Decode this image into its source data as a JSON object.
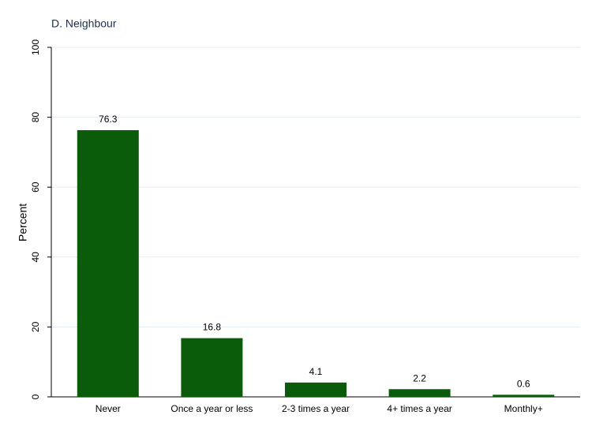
{
  "chart_data": {
    "type": "bar",
    "title": "D. Neighbour",
    "y_label": "Percent",
    "categories": [
      "Never",
      "Once a year or less",
      "2-3 times a year",
      "4+ times a year",
      "Monthly+"
    ],
    "values": [
      76.3,
      16.8,
      4.1,
      2.2,
      0.6
    ],
    "color": "#0a5c0a",
    "ylim": [
      0,
      100
    ],
    "yticks": [
      0,
      20,
      40,
      60,
      80,
      100
    ],
    "grid": true
  }
}
